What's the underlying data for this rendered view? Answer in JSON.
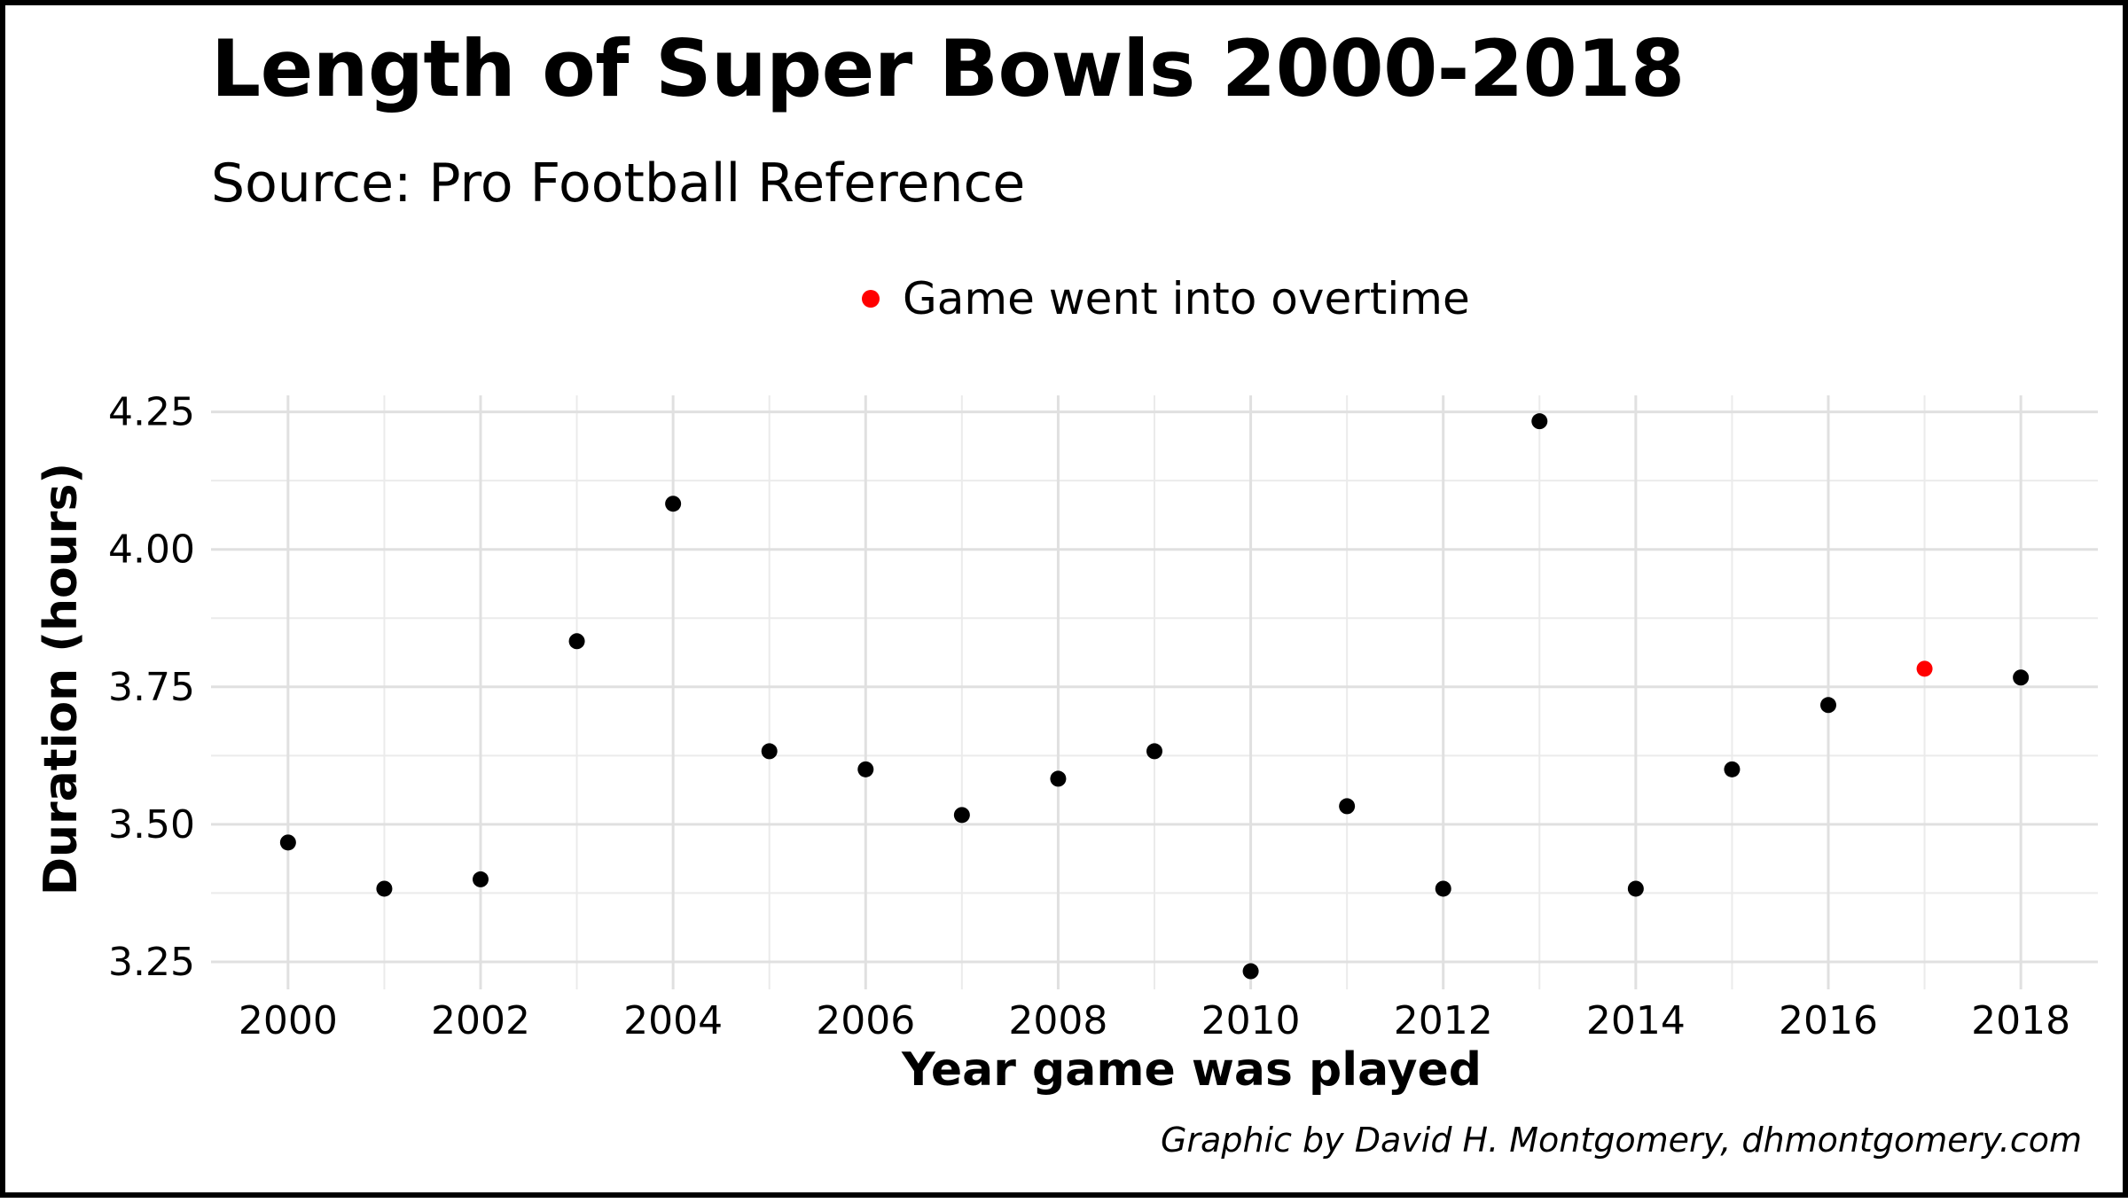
{
  "chart_data": {
    "type": "scatter",
    "title": "Length of Super Bowls 2000-2018",
    "subtitle": "Source: Pro Football Reference",
    "xlabel": "Year game was played",
    "ylabel": "Duration (hours)",
    "caption": "Graphic by David H. Montgomery, dhmontgomery.com",
    "xlim": [
      1999.2,
      2018.8
    ],
    "ylim": [
      3.2,
      4.28
    ],
    "xticks": [
      2000,
      2002,
      2004,
      2006,
      2008,
      2010,
      2012,
      2014,
      2016,
      2018
    ],
    "yticks": [
      3.25,
      3.5,
      3.75,
      4.0,
      4.25
    ],
    "ytick_labels": [
      "3.25",
      "3.50",
      "3.75",
      "4.00",
      "4.25"
    ],
    "grid": true,
    "legend_position": "top-center",
    "legend": [
      {
        "label": "Game went into overtime",
        "color": "#ff0000"
      }
    ],
    "point_color": "#000000",
    "highlight_color": "#ff0000",
    "points": [
      {
        "x": 2000,
        "y": 3.467,
        "overtime": false
      },
      {
        "x": 2001,
        "y": 3.383,
        "overtime": false
      },
      {
        "x": 2002,
        "y": 3.4,
        "overtime": false
      },
      {
        "x": 2003,
        "y": 3.833,
        "overtime": false
      },
      {
        "x": 2004,
        "y": 4.083,
        "overtime": false
      },
      {
        "x": 2005,
        "y": 3.633,
        "overtime": false
      },
      {
        "x": 2006,
        "y": 3.6,
        "overtime": false
      },
      {
        "x": 2007,
        "y": 3.517,
        "overtime": false
      },
      {
        "x": 2008,
        "y": 3.583,
        "overtime": false
      },
      {
        "x": 2009,
        "y": 3.633,
        "overtime": false
      },
      {
        "x": 2010,
        "y": 3.233,
        "overtime": false
      },
      {
        "x": 2011,
        "y": 3.533,
        "overtime": false
      },
      {
        "x": 2012,
        "y": 3.383,
        "overtime": false
      },
      {
        "x": 2013,
        "y": 4.233,
        "overtime": false
      },
      {
        "x": 2014,
        "y": 3.383,
        "overtime": false
      },
      {
        "x": 2015,
        "y": 3.6,
        "overtime": false
      },
      {
        "x": 2016,
        "y": 3.717,
        "overtime": false
      },
      {
        "x": 2017,
        "y": 3.783,
        "overtime": true
      },
      {
        "x": 2018,
        "y": 3.767,
        "overtime": false
      }
    ]
  }
}
